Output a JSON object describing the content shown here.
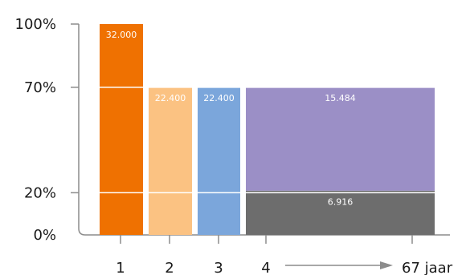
{
  "chart_data": {
    "type": "bar",
    "title": "",
    "xlabel": "",
    "ylabel": "",
    "ylim": [
      0,
      100
    ],
    "y_ticks": [
      {
        "value": 0,
        "label": "0%"
      },
      {
        "value": 20,
        "label": "20%"
      },
      {
        "value": 70,
        "label": "70%"
      },
      {
        "value": 100,
        "label": "100%"
      }
    ],
    "x_ticks": [
      {
        "category": 1,
        "label": "1"
      },
      {
        "category": 2,
        "label": "2"
      },
      {
        "category": 3,
        "label": "3"
      },
      {
        "category": 4,
        "label": "4"
      },
      {
        "category": 67,
        "label": "67 jaar"
      }
    ],
    "bars": [
      {
        "id": "bar-1",
        "categories": [
          1
        ],
        "segments": [
          {
            "from": 0,
            "to": 100,
            "color": "#ef7101",
            "label": "32.000",
            "label_pos": "top"
          }
        ]
      },
      {
        "id": "bar-2",
        "categories": [
          2
        ],
        "segments": [
          {
            "from": 0,
            "to": 70,
            "color": "#fbc282",
            "label": "22.400",
            "label_pos": "top"
          }
        ]
      },
      {
        "id": "bar-3",
        "categories": [
          3
        ],
        "segments": [
          {
            "from": 0,
            "to": 70,
            "color": "#7ba6db",
            "label": "22.400",
            "label_pos": "top"
          }
        ]
      },
      {
        "id": "bar-4-67",
        "categories": [
          4,
          67
        ],
        "segments": [
          {
            "from": 0,
            "to": 21,
            "color": "#6d6d6d",
            "label": "6.916",
            "label_pos": "middle"
          },
          {
            "from": 21,
            "to": 70,
            "color": "#9b8fc6",
            "label": "15.484",
            "label_pos": "top"
          }
        ]
      }
    ],
    "gridlines": [
      20,
      70
    ],
    "arrow_from": 4,
    "arrow_to": 67,
    "grid": false,
    "legend": "none"
  }
}
